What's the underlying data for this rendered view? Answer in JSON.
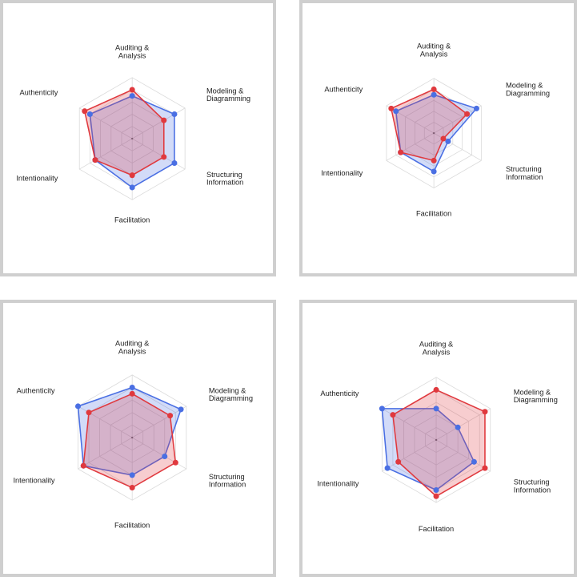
{
  "colors": {
    "blue": "#4a6fe3",
    "red": "#e0393e",
    "grid": "#d9d9d9",
    "frame": "#cfcfcf"
  },
  "chart_data": [
    {
      "type": "radar",
      "axes": [
        "Auditing & Analysis",
        "Modeling & Diagramming",
        "Structuring Information",
        "Facilitation",
        "Intentionality",
        "Authenticity"
      ],
      "rmax": 5,
      "series": [
        {
          "color": "blue",
          "values": [
            3.5,
            4.0,
            4.0,
            4.0,
            3.5,
            4.0
          ]
        },
        {
          "color": "red",
          "values": [
            4.0,
            3.0,
            3.0,
            3.0,
            3.5,
            4.5
          ]
        }
      ]
    },
    {
      "type": "radar",
      "axes": [
        "Auditing & Analysis",
        "Modeling & Diagramming",
        "Structuring Information",
        "Facilitation",
        "Intentionality",
        "Authenticity"
      ],
      "rmax": 5,
      "series": [
        {
          "color": "blue",
          "values": [
            3.5,
            4.5,
            1.5,
            3.5,
            3.5,
            4.0
          ]
        },
        {
          "color": "red",
          "values": [
            4.0,
            3.5,
            1.0,
            2.5,
            3.5,
            4.5
          ]
        }
      ]
    },
    {
      "type": "radar",
      "axes": [
        "Auditing & Analysis",
        "Modeling & Diagramming",
        "Structuring Information",
        "Facilitation",
        "Intentionality",
        "Authenticity"
      ],
      "rmax": 5,
      "series": [
        {
          "color": "blue",
          "values": [
            4.0,
            4.5,
            3.0,
            3.0,
            4.5,
            5.0
          ]
        },
        {
          "color": "red",
          "values": [
            3.5,
            3.5,
            4.0,
            4.0,
            4.5,
            4.0
          ]
        }
      ]
    },
    {
      "type": "radar",
      "axes": [
        "Auditing & Analysis",
        "Modeling & Diagramming",
        "Structuring Information",
        "Facilitation",
        "Intentionality",
        "Authenticity"
      ],
      "rmax": 5,
      "series": [
        {
          "color": "blue",
          "values": [
            2.5,
            2.0,
            3.5,
            4.0,
            4.5,
            5.0
          ]
        },
        {
          "color": "red",
          "values": [
            4.0,
            4.5,
            4.5,
            4.5,
            3.5,
            4.0
          ]
        }
      ]
    }
  ]
}
